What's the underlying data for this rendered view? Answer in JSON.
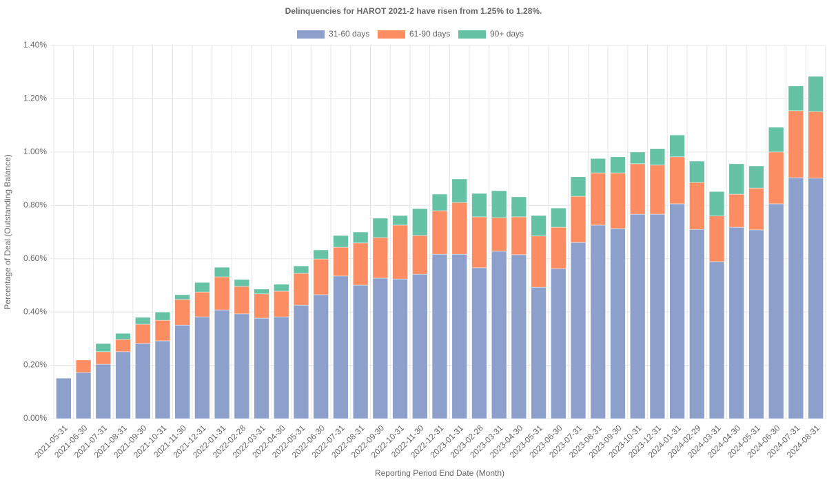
{
  "chart_data": {
    "type": "stacked_bar",
    "title": "Delinquencies for HAROT 2021-2 have risen from 1.25% to 1.28%.",
    "x_label": "Reporting Period End Date (Month)",
    "y_label": "Percentage of Deal (Outstanding Balance)",
    "categories": [
      "2021-05-31",
      "2021-06-30",
      "2021-07-31",
      "2021-08-31",
      "2021-09-30",
      "2021-10-31",
      "2021-11-30",
      "2021-12-31",
      "2022-01-31",
      "2022-02-28",
      "2022-03-31",
      "2022-04-30",
      "2022-05-31",
      "2022-06-30",
      "2022-07-31",
      "2022-08-31",
      "2022-09-30",
      "2022-10-31",
      "2022-11-30",
      "2022-12-31",
      "2023-01-31",
      "2023-02-28",
      "2023-03-31",
      "2023-04-30",
      "2023-05-31",
      "2023-06-30",
      "2023-07-31",
      "2023-08-31",
      "2023-09-30",
      "2023-10-31",
      "2023-12-31",
      "2024-01-31",
      "2024-02-29",
      "2024-03-31",
      "2024-04-30",
      "2024-05-31",
      "2024-06-30",
      "2024-07-31",
      "2024-08-31"
    ],
    "series": [
      {
        "name": "31-60 days",
        "color": "#8da0cb",
        "values": [
          0.152,
          0.173,
          0.204,
          0.251,
          0.282,
          0.292,
          0.351,
          0.382,
          0.408,
          0.393,
          0.377,
          0.382,
          0.426,
          0.465,
          0.535,
          0.501,
          0.527,
          0.524,
          0.542,
          0.617,
          0.617,
          0.566,
          0.628,
          0.615,
          0.493,
          0.563,
          0.661,
          0.726,
          0.713,
          0.767,
          0.767,
          0.806,
          0.71,
          0.589,
          0.718,
          0.708,
          0.806,
          0.904,
          0.902
        ]
      },
      {
        "name": "61-90 days",
        "color": "#fc8d62",
        "values": [
          0,
          0.047,
          0.047,
          0.046,
          0.072,
          0.077,
          0.096,
          0.093,
          0.124,
          0.103,
          0.091,
          0.096,
          0.119,
          0.134,
          0.108,
          0.158,
          0.152,
          0.202,
          0.145,
          0.163,
          0.194,
          0.191,
          0.126,
          0.142,
          0.192,
          0.155,
          0.173,
          0.196,
          0.209,
          0.189,
          0.184,
          0.176,
          0.176,
          0.171,
          0.124,
          0.157,
          0.194,
          0.251,
          0.25
        ]
      },
      {
        "name": "90+ days",
        "color": "#66c2a5",
        "values": [
          0,
          0,
          0.031,
          0.023,
          0.026,
          0.031,
          0.018,
          0.036,
          0.036,
          0.026,
          0.018,
          0.026,
          0.028,
          0.034,
          0.044,
          0.041,
          0.073,
          0.036,
          0.101,
          0.062,
          0.088,
          0.088,
          0.101,
          0.075,
          0.077,
          0.072,
          0.073,
          0.054,
          0.06,
          0.044,
          0.062,
          0.082,
          0.08,
          0.092,
          0.114,
          0.083,
          0.093,
          0.093,
          0.132
        ]
      }
    ],
    "ylim": [
      0,
      1.4
    ],
    "yticks": [
      {
        "value": 0,
        "label": "0.00%"
      },
      {
        "value": 0.2,
        "label": "0.20%"
      },
      {
        "value": 0.4,
        "label": "0.40%"
      },
      {
        "value": 0.6,
        "label": "0.60%"
      },
      {
        "value": 0.8,
        "label": "0.80%"
      },
      {
        "value": 1.0,
        "label": "1.00%"
      },
      {
        "value": 1.2,
        "label": "1.20%"
      },
      {
        "value": 1.4,
        "label": "1.40%"
      }
    ],
    "grid": true,
    "legend": "top"
  }
}
